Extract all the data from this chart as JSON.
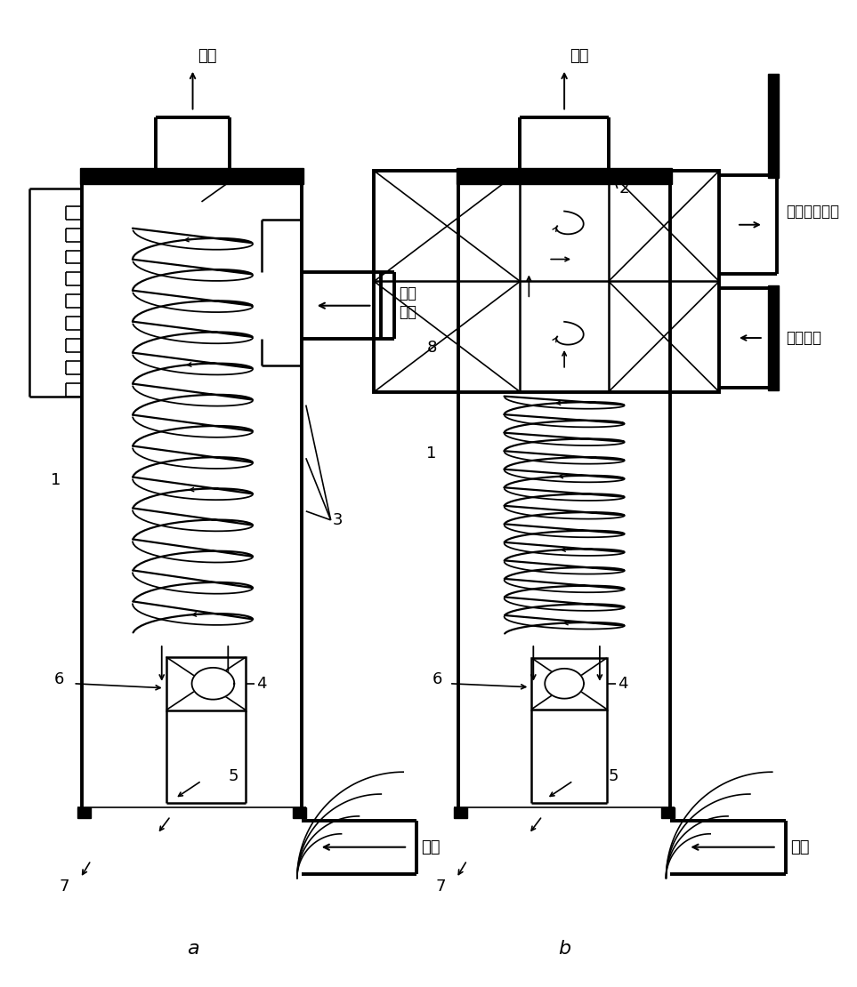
{
  "bg_color": "#ffffff",
  "line_color": "#000000",
  "fig_width": 9.63,
  "fig_height": 11.1,
  "label_a": "a",
  "label_b": "b",
  "text_qiti": "气体",
  "text_erci_konqi": "二次\n空气",
  "text_erci_konqi_b1": "二次空气出口",
  "text_erci_konqi_b2": "二次空气"
}
